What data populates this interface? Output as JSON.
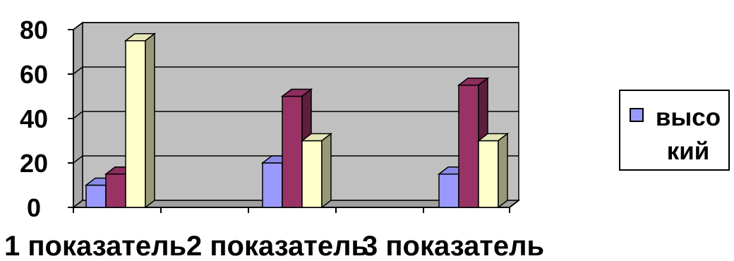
{
  "chart_data": {
    "type": "bar",
    "categories": [
      "1 показатель",
      "2 показатель",
      "3 показатель"
    ],
    "series": [
      {
        "name": "высокий",
        "values": [
          10,
          20,
          15
        ],
        "color": "#9999FF"
      },
      {
        "values": [
          15,
          50,
          55
        ],
        "color": "#993366"
      },
      {
        "values": [
          75,
          30,
          30
        ],
        "color": "#FFFFCC"
      }
    ],
    "yticks": [
      0,
      20,
      40,
      60,
      80
    ],
    "ylim": [
      0,
      80
    ],
    "grid": true,
    "three_d": true,
    "plot_background": "#C0C0C0",
    "legend_position": "right",
    "legend_text": "высо кий"
  }
}
